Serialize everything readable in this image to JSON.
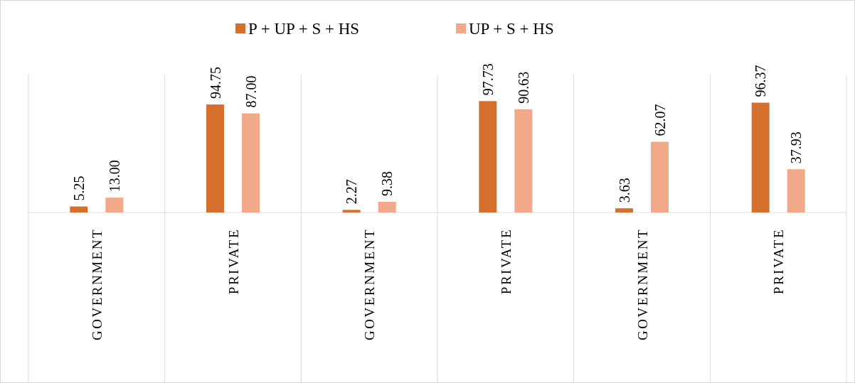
{
  "chart_data": {
    "type": "bar",
    "categories": [
      "GOVERNMENT",
      "PRIVATE",
      "GOVERNMENT",
      "PRIVATE",
      "GOVERNMENT",
      "PRIVATE"
    ],
    "series": [
      {
        "name": "P + UP + S + HS",
        "color": "#d4702b",
        "values": [
          5.25,
          94.75,
          2.27,
          97.73,
          3.63,
          96.37
        ],
        "value_labels": [
          "5.25",
          "94.75",
          "2.27",
          "97.73",
          "3.63",
          "96.37"
        ]
      },
      {
        "name": "UP + S + HS",
        "color": "#f2a98a",
        "values": [
          13.0,
          87.0,
          9.38,
          90.63,
          62.07,
          37.93
        ],
        "value_labels": [
          "13.00",
          "87.00",
          "9.38",
          "90.63",
          "62.07",
          "37.93"
        ]
      }
    ],
    "legend": "top",
    "grid": "x"
  }
}
